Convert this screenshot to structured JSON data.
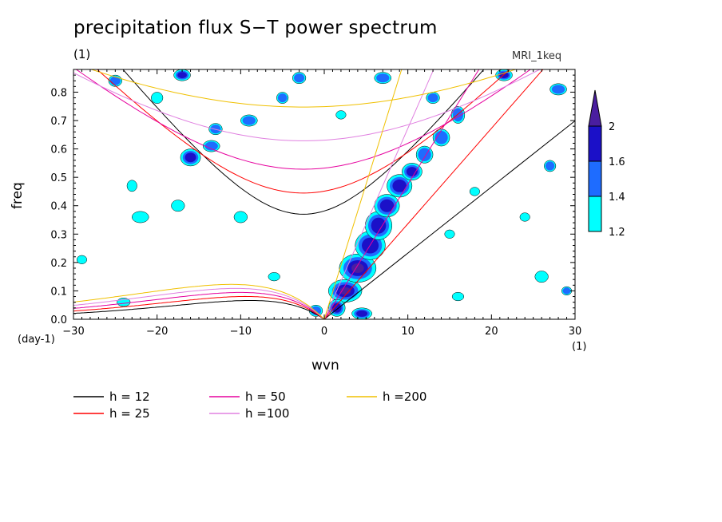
{
  "chart_data": {
    "type": "heatmap",
    "title": "precipitation flux S−T power spectrum",
    "subtitle_left": "(1)",
    "subtitle_right": "MRI_1keq",
    "xlabel": "wvn",
    "ylabel": "freq",
    "x_unit": "(1)",
    "y_unit": "(day-1)",
    "xlim": [
      -30,
      30
    ],
    "ylim": [
      0,
      0.88
    ],
    "x_ticks": [
      -30,
      -20,
      -10,
      0,
      10,
      20,
      30
    ],
    "x_tick_labels": [
      "−30",
      "−20",
      "−10",
      "0",
      "10",
      "20",
      "30"
    ],
    "y_ticks": [
      0.0,
      0.1,
      0.2,
      0.3,
      0.4,
      0.5,
      0.6,
      0.7,
      0.8
    ],
    "y_tick_labels": [
      "0.0",
      "0.1",
      "0.2",
      "0.3",
      "0.4",
      "0.5",
      "0.6",
      "0.7",
      "0.8"
    ],
    "colorbar": {
      "levels": [
        1.2,
        1.4,
        1.6,
        2
      ],
      "labels": [
        "1.2",
        "1.4",
        "1.6",
        "2"
      ],
      "colors": [
        "#00ffff",
        "#1e6cff",
        "#1b10c8",
        "#4a1ea0"
      ]
    },
    "dispersion_curves": [
      {
        "name": "h = 12",
        "h": 12,
        "color": "#000000"
      },
      {
        "name": "h = 25",
        "h": 25,
        "color": "#ff0000"
      },
      {
        "name": "h = 50",
        "h": 50,
        "color": "#e6009e"
      },
      {
        "name": "h =100",
        "h": 100,
        "color": "#e080e0"
      },
      {
        "name": "h =200",
        "h": 200,
        "color": "#f0c000"
      }
    ],
    "signal_patches": [
      {
        "x": 2.5,
        "y": 0.1,
        "rx": 2.0,
        "ry": 0.04,
        "v": 2.0
      },
      {
        "x": 4.0,
        "y": 0.18,
        "rx": 2.2,
        "ry": 0.05,
        "v": 2.0
      },
      {
        "x": 5.5,
        "y": 0.26,
        "rx": 1.8,
        "ry": 0.05,
        "v": 1.9
      },
      {
        "x": 6.5,
        "y": 0.33,
        "rx": 1.6,
        "ry": 0.05,
        "v": 1.8
      },
      {
        "x": 7.5,
        "y": 0.4,
        "rx": 1.5,
        "ry": 0.04,
        "v": 1.7
      },
      {
        "x": 9.0,
        "y": 0.47,
        "rx": 1.5,
        "ry": 0.04,
        "v": 1.6
      },
      {
        "x": 10.5,
        "y": 0.52,
        "rx": 1.2,
        "ry": 0.03,
        "v": 1.6
      },
      {
        "x": 12.0,
        "y": 0.58,
        "rx": 1.0,
        "ry": 0.03,
        "v": 1.5
      },
      {
        "x": 14.0,
        "y": 0.64,
        "rx": 1.0,
        "ry": 0.03,
        "v": 1.4
      },
      {
        "x": 16.0,
        "y": 0.72,
        "rx": 0.8,
        "ry": 0.03,
        "v": 1.4
      },
      {
        "x": 1.5,
        "y": 0.04,
        "rx": 1.0,
        "ry": 0.03,
        "v": 1.8
      },
      {
        "x": 4.5,
        "y": 0.02,
        "rx": 1.2,
        "ry": 0.02,
        "v": 1.6
      },
      {
        "x": -1.0,
        "y": 0.03,
        "rx": 0.8,
        "ry": 0.02,
        "v": 1.5
      },
      {
        "x": 21.5,
        "y": 0.86,
        "rx": 1.0,
        "ry": 0.02,
        "v": 1.8
      },
      {
        "x": 28.0,
        "y": 0.81,
        "rx": 1.0,
        "ry": 0.02,
        "v": 1.4
      },
      {
        "x": -16.0,
        "y": 0.57,
        "rx": 1.2,
        "ry": 0.03,
        "v": 1.7
      },
      {
        "x": -13.5,
        "y": 0.61,
        "rx": 1.0,
        "ry": 0.02,
        "v": 1.5
      },
      {
        "x": -9.0,
        "y": 0.7,
        "rx": 1.0,
        "ry": 0.02,
        "v": 1.5
      },
      {
        "x": -13.0,
        "y": 0.67,
        "rx": 0.8,
        "ry": 0.02,
        "v": 1.4
      },
      {
        "x": -17.0,
        "y": 0.86,
        "rx": 1.0,
        "ry": 0.02,
        "v": 1.6
      },
      {
        "x": -23.0,
        "y": 0.47,
        "rx": 0.6,
        "ry": 0.02,
        "v": 1.3
      },
      {
        "x": -22.0,
        "y": 0.36,
        "rx": 1.0,
        "ry": 0.02,
        "v": 1.3
      },
      {
        "x": -17.5,
        "y": 0.4,
        "rx": 0.8,
        "ry": 0.02,
        "v": 1.3
      },
      {
        "x": -10.0,
        "y": 0.36,
        "rx": 0.8,
        "ry": 0.02,
        "v": 1.3
      },
      {
        "x": -29.0,
        "y": 0.21,
        "rx": 0.6,
        "ry": 0.015,
        "v": 1.3
      },
      {
        "x": -25.0,
        "y": 0.84,
        "rx": 0.8,
        "ry": 0.02,
        "v": 1.4
      },
      {
        "x": -3.0,
        "y": 0.85,
        "rx": 0.8,
        "ry": 0.02,
        "v": 1.5
      },
      {
        "x": 7.0,
        "y": 0.85,
        "rx": 1.0,
        "ry": 0.02,
        "v": 1.4
      },
      {
        "x": 13.0,
        "y": 0.78,
        "rx": 0.8,
        "ry": 0.02,
        "v": 1.5
      },
      {
        "x": 27.0,
        "y": 0.54,
        "rx": 0.7,
        "ry": 0.02,
        "v": 1.4
      },
      {
        "x": 24.0,
        "y": 0.36,
        "rx": 0.6,
        "ry": 0.015,
        "v": 1.3
      },
      {
        "x": 26.0,
        "y": 0.15,
        "rx": 0.8,
        "ry": 0.02,
        "v": 1.3
      },
      {
        "x": 29.0,
        "y": 0.1,
        "rx": 0.6,
        "ry": 0.015,
        "v": 1.4
      },
      {
        "x": 16.0,
        "y": 0.08,
        "rx": 0.7,
        "ry": 0.015,
        "v": 1.3
      },
      {
        "x": 15.0,
        "y": 0.3,
        "rx": 0.6,
        "ry": 0.015,
        "v": 1.3
      },
      {
        "x": 18.0,
        "y": 0.45,
        "rx": 0.6,
        "ry": 0.015,
        "v": 1.3
      },
      {
        "x": -5.0,
        "y": 0.78,
        "rx": 0.7,
        "ry": 0.02,
        "v": 1.4
      },
      {
        "x": 2.0,
        "y": 0.72,
        "rx": 0.6,
        "ry": 0.015,
        "v": 1.3
      },
      {
        "x": -20.0,
        "y": 0.78,
        "rx": 0.7,
        "ry": 0.02,
        "v": 1.3
      },
      {
        "x": -6.0,
        "y": 0.15,
        "rx": 0.7,
        "ry": 0.015,
        "v": 1.3
      },
      {
        "x": -24.0,
        "y": 0.06,
        "rx": 0.8,
        "ry": 0.015,
        "v": 1.3
      }
    ]
  }
}
